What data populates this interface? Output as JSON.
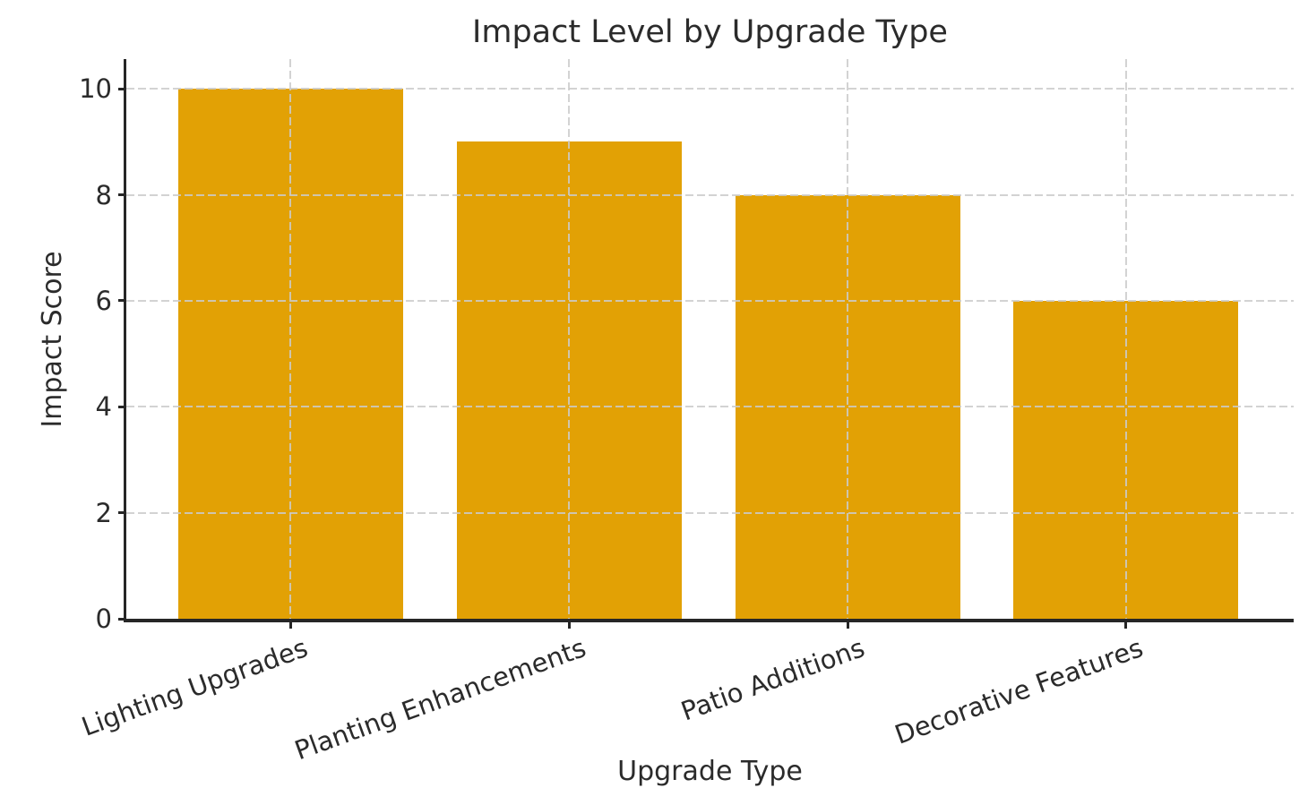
{
  "chart_data": {
    "type": "bar",
    "title": "Impact Level by Upgrade Type",
    "xlabel": "Upgrade Type",
    "ylabel": "Impact Score",
    "categories": [
      "Lighting Upgrades",
      "Planting Enhancements",
      "Patio Additions",
      "Decorative Features"
    ],
    "values": [
      10,
      9,
      8,
      6
    ],
    "yticks": [
      0,
      2,
      4,
      6,
      8,
      10
    ],
    "ylim": [
      0,
      10.56
    ],
    "bar_color": "#E2A105",
    "text_color": "#2b2b2b",
    "spine_color": "#262626",
    "grid_color": "#cccccc",
    "grid": true,
    "grid_style": "dashed",
    "legend": false,
    "x_tick_rotation_deg": 20
  }
}
